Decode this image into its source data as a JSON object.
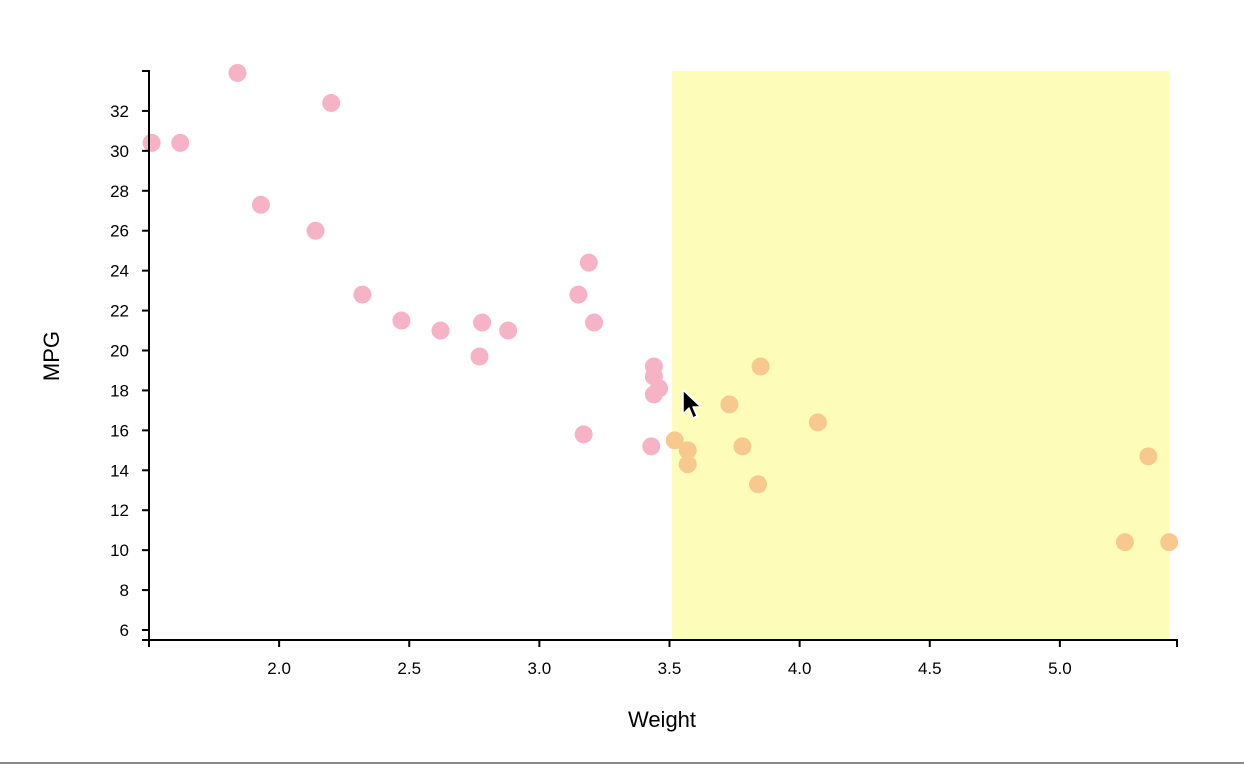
{
  "chart_data": {
    "type": "scatter",
    "xlabel": "Weight",
    "ylabel": "MPG",
    "xlim": [
      1.5,
      5.45
    ],
    "ylim": [
      5.5,
      34
    ],
    "x_ticks": [
      2.0,
      2.5,
      3.0,
      3.5,
      4.0,
      4.5,
      5.0
    ],
    "x_tick_labels": [
      "2.0",
      "2.5",
      "3.0",
      "3.5",
      "4.0",
      "4.5",
      "5.0"
    ],
    "y_ticks": [
      6,
      8,
      10,
      12,
      14,
      16,
      18,
      20,
      22,
      24,
      26,
      28,
      30,
      32
    ],
    "y_tick_labels": [
      "6",
      "8",
      "10",
      "12",
      "14",
      "16",
      "18",
      "20",
      "22",
      "24",
      "26",
      "28",
      "30",
      "32"
    ],
    "grid": false,
    "brush_selection": {
      "x_range": [
        3.51,
        5.42
      ],
      "y_range": [
        5.5,
        34
      ]
    },
    "colors": {
      "point": "#f7b3c6",
      "selected_point": "#f7c98f",
      "brush": "#fdfdb9",
      "axis": "#000000"
    },
    "points": [
      {
        "x": 1.51,
        "y": 30.4
      },
      {
        "x": 1.62,
        "y": 30.4
      },
      {
        "x": 1.84,
        "y": 33.9
      },
      {
        "x": 1.93,
        "y": 27.3
      },
      {
        "x": 2.14,
        "y": 26.0
      },
      {
        "x": 2.2,
        "y": 32.4
      },
      {
        "x": 2.32,
        "y": 22.8
      },
      {
        "x": 2.47,
        "y": 21.5
      },
      {
        "x": 2.62,
        "y": 21.0
      },
      {
        "x": 2.77,
        "y": 19.7
      },
      {
        "x": 2.78,
        "y": 21.4
      },
      {
        "x": 2.88,
        "y": 21.0
      },
      {
        "x": 3.15,
        "y": 22.8
      },
      {
        "x": 3.17,
        "y": 15.8
      },
      {
        "x": 3.19,
        "y": 24.4
      },
      {
        "x": 3.21,
        "y": 21.4
      },
      {
        "x": 3.43,
        "y": 15.2
      },
      {
        "x": 3.44,
        "y": 17.8
      },
      {
        "x": 3.44,
        "y": 19.2
      },
      {
        "x": 3.44,
        "y": 18.7
      },
      {
        "x": 3.46,
        "y": 18.1
      },
      {
        "x": 3.52,
        "y": 15.5
      },
      {
        "x": 3.57,
        "y": 14.3
      },
      {
        "x": 3.57,
        "y": 15.0
      },
      {
        "x": 3.73,
        "y": 17.3
      },
      {
        "x": 3.78,
        "y": 15.2
      },
      {
        "x": 3.84,
        "y": 13.3
      },
      {
        "x": 3.85,
        "y": 19.2
      },
      {
        "x": 4.07,
        "y": 16.4
      },
      {
        "x": 5.25,
        "y": 10.4
      },
      {
        "x": 5.34,
        "y": 14.7
      },
      {
        "x": 5.42,
        "y": 10.4
      }
    ]
  }
}
